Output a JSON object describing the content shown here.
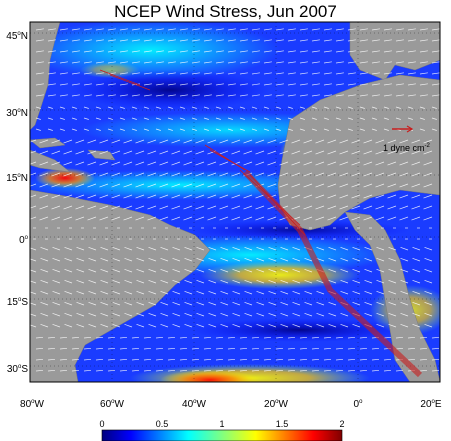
{
  "map": {
    "title": "NCEP Wind Stress, Jun 2007",
    "lat_labels": [
      {
        "value": "45",
        "hemi": "N"
      },
      {
        "value": "30",
        "hemi": "N"
      },
      {
        "value": "15",
        "hemi": "N"
      },
      {
        "value": "0",
        "hemi": ""
      },
      {
        "value": "15",
        "hemi": "S"
      },
      {
        "value": "30",
        "hemi": "S"
      }
    ],
    "lon_labels": [
      {
        "value": "80",
        "hemi": "W"
      },
      {
        "value": "60",
        "hemi": "W"
      },
      {
        "value": "40",
        "hemi": "W"
      },
      {
        "value": "20",
        "hemi": "W"
      },
      {
        "value": "0",
        "hemi": ""
      },
      {
        "value": "20",
        "hemi": "E"
      }
    ],
    "reference_arrow": {
      "label": "1 dyne cm",
      "exponent": "-2",
      "color": "#c81e1e"
    },
    "land_color": "#9a9a9a",
    "ocean_colormap": [
      "#00007f",
      "#0000ff",
      "#0080ff",
      "#00ffff",
      "#80ff80",
      "#ffff00",
      "#ff8000",
      "#ff0000",
      "#7f0000"
    ]
  },
  "colorbar": {
    "ticks": [
      "0",
      "0.5",
      "1",
      "1.5",
      "2"
    ],
    "range": [
      0,
      2
    ],
    "units": "dyne cm-2"
  }
}
